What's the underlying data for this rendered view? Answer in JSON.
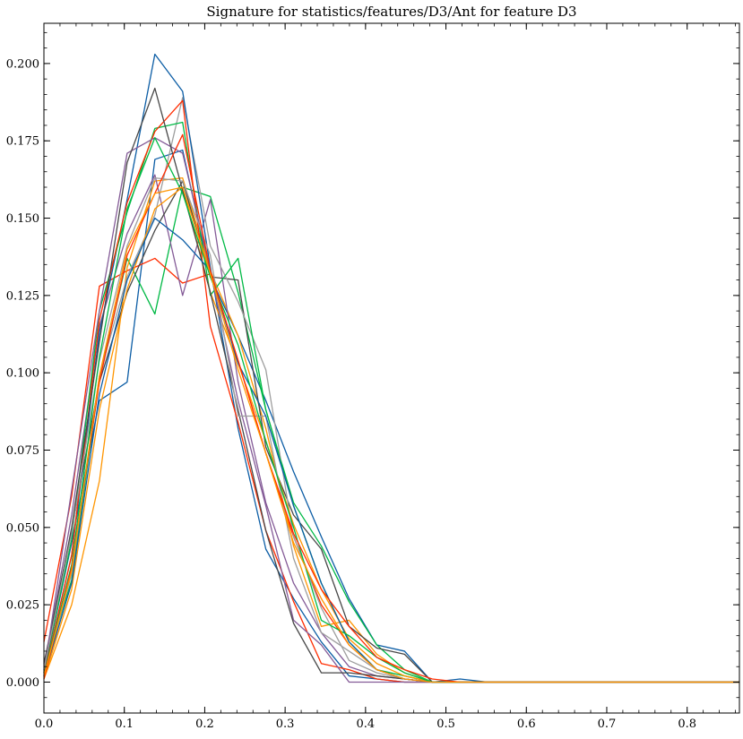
{
  "chart_data": {
    "type": "line",
    "title": "Signature for statistics/features/D3/Ant for feature D3",
    "xlabel": "",
    "ylabel": "",
    "xlim": [
      0.0,
      0.865
    ],
    "ylim": [
      -0.01,
      0.213
    ],
    "xticks": [
      0.0,
      0.1,
      0.2,
      0.3,
      0.4,
      0.5,
      0.6,
      0.7,
      0.8
    ],
    "xtick_labels": [
      "0.0",
      "0.1",
      "0.2",
      "0.3",
      "0.4",
      "0.5",
      "0.6",
      "0.7",
      "0.8"
    ],
    "yticks": [
      0.0,
      0.025,
      0.05,
      0.075,
      0.1,
      0.125,
      0.15,
      0.175,
      0.2
    ],
    "ytick_labels": [
      "0.000",
      "0.025",
      "0.050",
      "0.075",
      "0.100",
      "0.125",
      "0.150",
      "0.175",
      "0.200"
    ],
    "grid": false,
    "x": [
      0.0,
      0.0345,
      0.069,
      0.1035,
      0.138,
      0.1725,
      0.207,
      0.2415,
      0.276,
      0.3105,
      0.345,
      0.3795,
      0.414,
      0.4485,
      0.483,
      0.5175,
      0.552,
      0.5865,
      0.621,
      0.6555,
      0.69,
      0.7245,
      0.759,
      0.7935,
      0.828,
      0.865
    ],
    "series": [
      {
        "color": "#0C5DA5",
        "values": [
          0.003,
          0.045,
          0.091,
          0.097,
          0.169,
          0.172,
          0.131,
          0.112,
          0.091,
          0.068,
          0.047,
          0.027,
          0.012,
          0.01,
          0.0,
          0.001,
          0.0,
          0,
          0,
          0,
          0,
          0,
          0,
          0,
          0,
          0
        ]
      },
      {
        "color": "#00B945",
        "values": [
          0.004,
          0.033,
          0.098,
          0.137,
          0.119,
          0.16,
          0.157,
          0.126,
          0.088,
          0.058,
          0.044,
          0.026,
          0.012,
          0.004,
          0.0,
          0,
          0,
          0,
          0,
          0,
          0,
          0,
          0,
          0,
          0,
          0
        ]
      },
      {
        "color": "#FF2C00",
        "values": [
          0.013,
          0.06,
          0.128,
          0.133,
          0.137,
          0.129,
          0.132,
          0.104,
          0.074,
          0.047,
          0.025,
          0.012,
          0.004,
          0.001,
          0.0,
          0,
          0,
          0,
          0,
          0,
          0,
          0,
          0,
          0,
          0,
          0
        ]
      },
      {
        "color": "#FF9500",
        "values": [
          0.001,
          0.025,
          0.065,
          0.134,
          0.162,
          0.163,
          0.133,
          0.112,
          0.082,
          0.044,
          0.018,
          0.02,
          0.009,
          0.003,
          0.0,
          0,
          0,
          0,
          0,
          0,
          0,
          0,
          0,
          0,
          0,
          0
        ]
      },
      {
        "color": "#845B97",
        "values": [
          0.004,
          0.054,
          0.115,
          0.145,
          0.164,
          0.125,
          0.156,
          0.097,
          0.058,
          0.032,
          0.016,
          0.005,
          0.002,
          0.001,
          0.0,
          0,
          0,
          0,
          0,
          0,
          0,
          0,
          0,
          0,
          0,
          0
        ]
      },
      {
        "color": "#474747",
        "values": [
          0.006,
          0.049,
          0.097,
          0.126,
          0.146,
          0.162,
          0.131,
          0.13,
          0.076,
          0.054,
          0.043,
          0.018,
          0.011,
          0.009,
          0.0,
          0,
          0,
          0,
          0,
          0,
          0,
          0,
          0,
          0,
          0,
          0
        ]
      },
      {
        "color": "#9E9E9E",
        "values": [
          0.002,
          0.035,
          0.099,
          0.131,
          0.151,
          0.189,
          0.141,
          0.123,
          0.101,
          0.047,
          0.024,
          0.007,
          0.003,
          0.001,
          0.0,
          0,
          0,
          0,
          0,
          0,
          0,
          0,
          0,
          0,
          0,
          0
        ]
      },
      {
        "color": "#0C5DA5",
        "values": [
          0.002,
          0.041,
          0.113,
          0.156,
          0.203,
          0.191,
          0.134,
          0.082,
          0.043,
          0.027,
          0.013,
          0.002,
          0.001,
          0.0,
          0.0,
          0,
          0,
          0,
          0,
          0,
          0,
          0,
          0,
          0,
          0,
          0
        ]
      },
      {
        "color": "#00B945",
        "values": [
          0.003,
          0.046,
          0.12,
          0.152,
          0.179,
          0.181,
          0.125,
          0.137,
          0.088,
          0.057,
          0.032,
          0.013,
          0.004,
          0.002,
          0.0,
          0,
          0,
          0,
          0,
          0,
          0,
          0,
          0,
          0,
          0,
          0
        ]
      },
      {
        "color": "#FF2C00",
        "values": [
          0.002,
          0.041,
          0.117,
          0.155,
          0.178,
          0.188,
          0.115,
          0.084,
          0.049,
          0.026,
          0.006,
          0.004,
          0.001,
          0.0,
          0.0,
          0,
          0,
          0,
          0,
          0,
          0,
          0,
          0,
          0,
          0,
          0
        ]
      },
      {
        "color": "#FF9500",
        "values": [
          0.001,
          0.03,
          0.088,
          0.127,
          0.153,
          0.16,
          0.126,
          0.103,
          0.078,
          0.051,
          0.03,
          0.014,
          0.006,
          0.002,
          0.0,
          0,
          0,
          0,
          0,
          0,
          0,
          0,
          0,
          0,
          0,
          0
        ]
      },
      {
        "color": "#845B97",
        "values": [
          0.003,
          0.062,
          0.12,
          0.171,
          0.176,
          0.171,
          0.133,
          0.091,
          0.057,
          0.02,
          0.012,
          0.0,
          0.0,
          0.0,
          0.0,
          0,
          0,
          0,
          0,
          0,
          0,
          0,
          0,
          0,
          0,
          0
        ]
      },
      {
        "color": "#474747",
        "values": [
          0.003,
          0.05,
          0.11,
          0.168,
          0.192,
          0.159,
          0.126,
          0.088,
          0.049,
          0.019,
          0.003,
          0.003,
          0.002,
          0.001,
          0.0,
          0,
          0,
          0,
          0,
          0,
          0,
          0,
          0,
          0,
          0,
          0
        ]
      },
      {
        "color": "#9E9E9E",
        "values": [
          0.004,
          0.048,
          0.104,
          0.141,
          0.163,
          0.162,
          0.138,
          0.086,
          0.086,
          0.04,
          0.016,
          0.01,
          0.004,
          0.001,
          0.0,
          0,
          0,
          0,
          0,
          0,
          0,
          0,
          0,
          0,
          0,
          0
        ]
      },
      {
        "color": "#0C5DA5",
        "values": [
          0.002,
          0.032,
          0.093,
          0.13,
          0.15,
          0.143,
          0.133,
          0.103,
          0.086,
          0.057,
          0.032,
          0.013,
          0.004,
          0.001,
          0.0,
          0,
          0,
          0,
          0,
          0,
          0,
          0,
          0,
          0,
          0,
          0
        ]
      },
      {
        "color": "#00B945",
        "values": [
          0.002,
          0.038,
          0.105,
          0.153,
          0.176,
          0.158,
          0.131,
          0.109,
          0.078,
          0.05,
          0.02,
          0.015,
          0.008,
          0.003,
          0.0,
          0,
          0,
          0,
          0,
          0,
          0,
          0,
          0,
          0,
          0,
          0
        ]
      },
      {
        "color": "#FF2C00",
        "values": [
          0.001,
          0.037,
          0.097,
          0.138,
          0.158,
          0.177,
          0.133,
          0.104,
          0.074,
          0.048,
          0.03,
          0.018,
          0.008,
          0.004,
          0.001,
          0.0,
          0,
          0,
          0,
          0,
          0,
          0,
          0,
          0,
          0,
          0
        ]
      },
      {
        "color": "#FF9500",
        "values": [
          0.002,
          0.036,
          0.099,
          0.14,
          0.158,
          0.16,
          0.132,
          0.101,
          0.074,
          0.045,
          0.027,
          0.012,
          0.004,
          0.001,
          0.0,
          0,
          0,
          0,
          0,
          0,
          0,
          0,
          0,
          0,
          0,
          0
        ]
      }
    ]
  }
}
